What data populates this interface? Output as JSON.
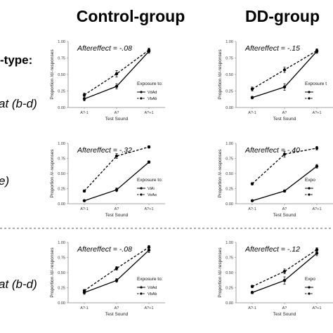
{
  "header": {
    "left_title": "Control-group",
    "right_title": "DD-group"
  },
  "row_labels": {
    "type": "-type:",
    "row1": "at (b-d)",
    "row2": "e)",
    "row3": "at (b-d)"
  },
  "colors": {
    "line": "#000000",
    "divider": "#555555"
  },
  "chart_data": [
    {
      "type": "line",
      "panel": "control-1",
      "annotation": "Aftereffect = -.08",
      "xlabel": "Test Sound",
      "ylabel": "Proportion /d/-responses",
      "categories": [
        "A?-1",
        "A?",
        "A?+1"
      ],
      "ylim": [
        0,
        1
      ],
      "yticks": [
        "0.00",
        "0.25",
        "0.50",
        "0.75",
        "1.00"
      ],
      "legend_title": "Exposure to:",
      "series": [
        {
          "name": "VdAd",
          "style": "solid",
          "values": [
            0.13,
            0.32,
            0.85
          ],
          "errors": [
            0.03,
            0.04,
            0.03
          ]
        },
        {
          "name": "VbAb",
          "style": "dashed",
          "values": [
            0.19,
            0.51,
            0.87
          ],
          "errors": [
            0.03,
            0.05,
            0.03
          ]
        }
      ]
    },
    {
      "type": "line",
      "panel": "dd-1",
      "annotation": "Aftereffect = -.15",
      "xlabel": "Test Sound",
      "ylabel": "Proportion /d/-responses",
      "categories": [
        "A?-1",
        "A?",
        "A?+1"
      ],
      "ylim": [
        0,
        1
      ],
      "yticks": [
        "0.00",
        "0.25",
        "0.50",
        "0.75",
        "1.00"
      ],
      "legend_title": "Exposure t",
      "series": [
        {
          "name": "",
          "style": "solid",
          "values": [
            0.15,
            0.31,
            0.85
          ],
          "errors": [
            0.02,
            0.05,
            0.03
          ]
        },
        {
          "name": "",
          "style": "dashed",
          "values": [
            0.28,
            0.57,
            0.86
          ],
          "errors": [
            0.03,
            0.04,
            0.03
          ]
        }
      ]
    },
    {
      "type": "line",
      "panel": "control-2",
      "annotation": "Aftereffect = -.32",
      "xlabel": "Test Sound",
      "ylabel": "Proportion /i/-responses",
      "categories": [
        "A?-1",
        "A?",
        "A?+1"
      ],
      "ylim": [
        0,
        1
      ],
      "yticks": [
        "0.00",
        "0.25",
        "0.50",
        "0.75",
        "1.00"
      ],
      "legend_title": "Exposure to:",
      "series": [
        {
          "name": "ViAi",
          "style": "solid",
          "values": [
            0.05,
            0.23,
            0.69
          ],
          "errors": [
            0.01,
            0.03,
            0.02
          ]
        },
        {
          "name": "VeAe",
          "style": "dashed",
          "values": [
            0.21,
            0.79,
            0.94
          ],
          "errors": [
            0.02,
            0.04,
            0.02
          ]
        }
      ]
    },
    {
      "type": "line",
      "panel": "dd-2",
      "annotation": "Aftereffect = -.40",
      "xlabel": "Test Sound",
      "ylabel": "Proportion /i/-responses",
      "categories": [
        "A?-1",
        "A?",
        "A?+1"
      ],
      "ylim": [
        0,
        1
      ],
      "yticks": [
        "0.00",
        "0.25",
        "0.50",
        "0.75",
        "1.00"
      ],
      "legend_title": "Expo",
      "series": [
        {
          "name": "",
          "style": "solid",
          "values": [
            0.05,
            0.21,
            0.62
          ],
          "errors": [
            0.01,
            0.02,
            0.03
          ]
        },
        {
          "name": "",
          "style": "dashed",
          "values": [
            0.33,
            0.82,
            0.92
          ],
          "errors": [
            0.02,
            0.05,
            0.03
          ]
        }
      ]
    },
    {
      "type": "line",
      "panel": "control-3",
      "annotation": "Aftereffect = -.08",
      "xlabel": "Test Sound",
      "ylabel": "Proportion /d/-responses",
      "categories": [
        "A?-1",
        "A?",
        "A?+1"
      ],
      "ylim": [
        0,
        1
      ],
      "yticks": [
        "0.00",
        "0.25",
        "0.50",
        "0.75",
        "1.00"
      ],
      "legend_title": "Exposure to:",
      "series": [
        {
          "name": "VdAd",
          "style": "solid",
          "values": [
            0.17,
            0.37,
            0.87
          ],
          "errors": [
            0.03,
            0.03,
            0.04
          ]
        },
        {
          "name": "VbAb",
          "style": "dashed",
          "values": [
            0.2,
            0.57,
            0.92
          ],
          "errors": [
            0.02,
            0.03,
            0.03
          ]
        }
      ]
    },
    {
      "type": "line",
      "panel": "dd-3",
      "annotation": "Aftereffect = -.12",
      "xlabel": "Test Sound",
      "ylabel": "Proportion /d/-responses",
      "categories": [
        "A?-1",
        "A?",
        "A?+1"
      ],
      "ylim": [
        0,
        1
      ],
      "yticks": [
        "0.00",
        "0.25",
        "0.50",
        "0.75",
        "1.00"
      ],
      "legend_title": "Expo",
      "series": [
        {
          "name": "",
          "style": "solid",
          "values": [
            0.17,
            0.37,
            0.82
          ],
          "errors": [
            0.02,
            0.06,
            0.04
          ]
        },
        {
          "name": "",
          "style": "dashed",
          "values": [
            0.27,
            0.52,
            0.88
          ],
          "errors": [
            0.02,
            0.04,
            0.03
          ]
        }
      ]
    }
  ]
}
